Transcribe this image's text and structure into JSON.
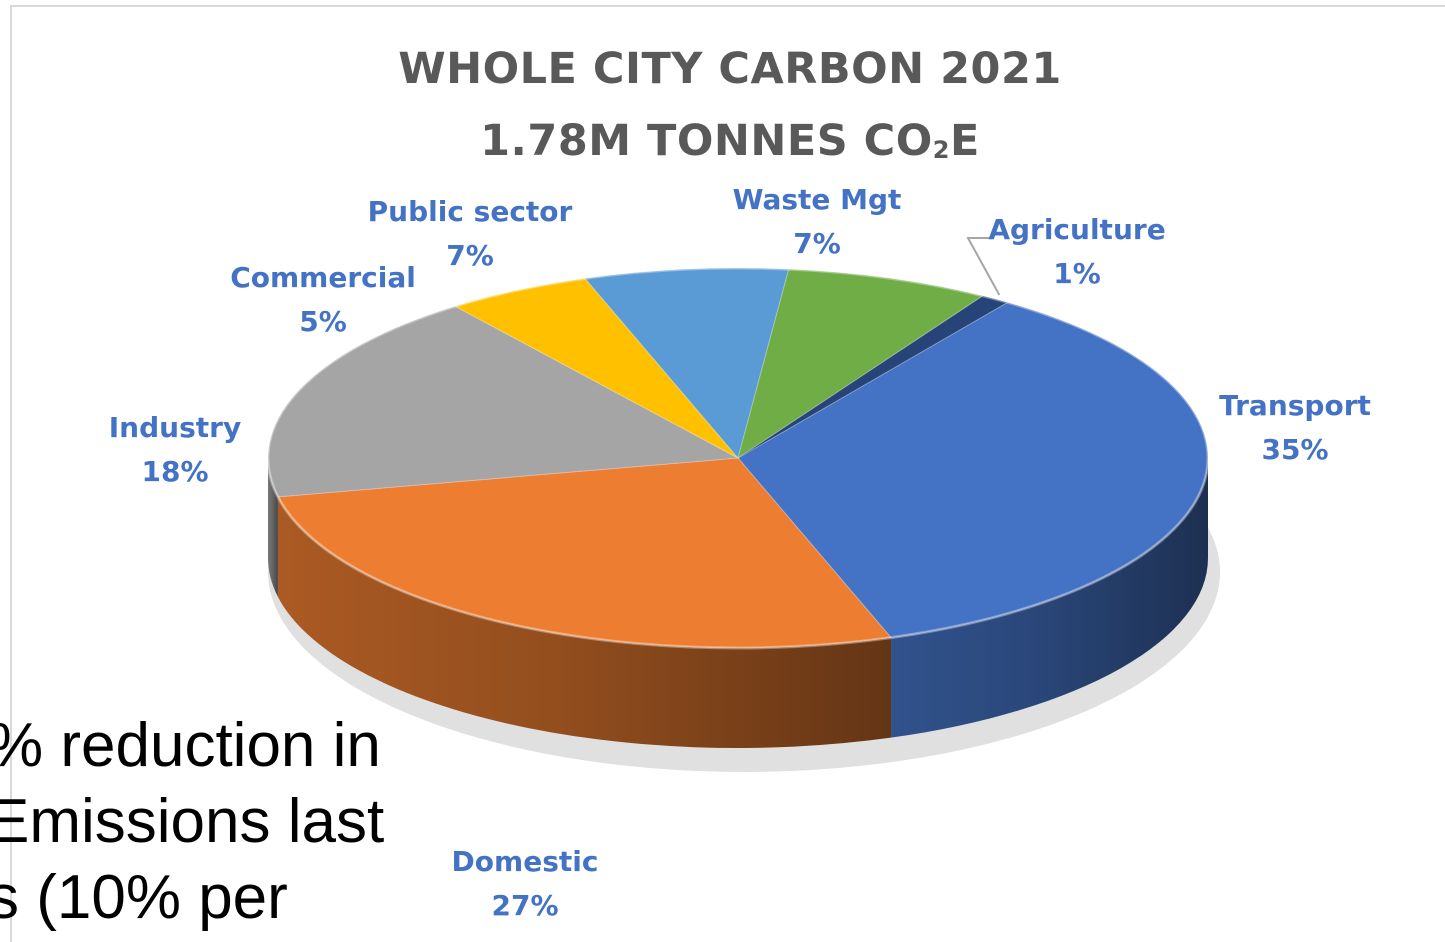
{
  "chart_data": {
    "type": "pie",
    "title": "WHOLE CITY CARBON 2021",
    "subtitle_parts": [
      "1.78M TONNES CO",
      "2",
      "E"
    ],
    "slices": [
      {
        "name": "Transport",
        "percent_label": "35%",
        "value": 35,
        "color": "#4472c4"
      },
      {
        "name": "Domestic",
        "percent_label": "27%",
        "value": 27,
        "color": "#ed7d31"
      },
      {
        "name": "Industry",
        "percent_label": "18%",
        "value": 18,
        "color": "#a5a5a5"
      },
      {
        "name": "Commercial",
        "percent_label": "5%",
        "value": 5,
        "color": "#ffc000"
      },
      {
        "name": "Public sector",
        "percent_label": "7%",
        "value": 7,
        "color": "#5b9bd5"
      },
      {
        "name": "Waste Mgt",
        "percent_label": "7%",
        "value": 7,
        "color": "#70ad47"
      },
      {
        "name": "Agriculture",
        "percent_label": "1%",
        "value": 1,
        "color": "#264478"
      }
    ],
    "label_color": "#4472c4"
  },
  "overlay_text": [
    "% reduction in",
    "Emissions last",
    "s (10% per"
  ]
}
